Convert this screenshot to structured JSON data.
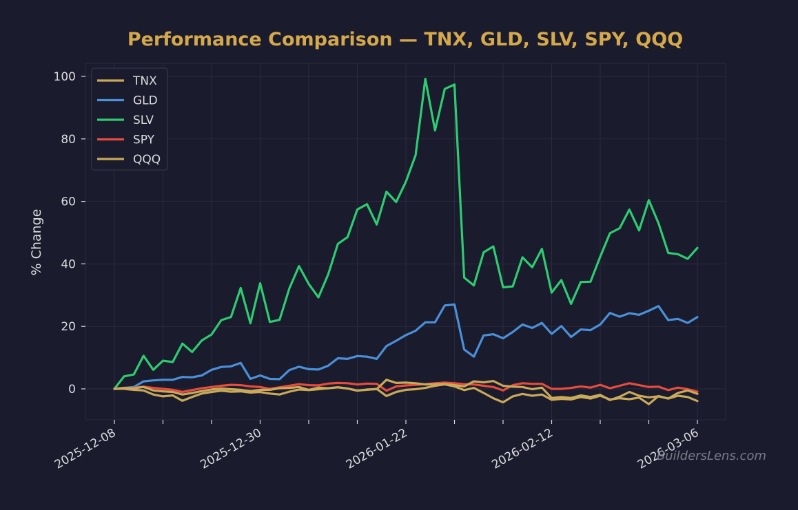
{
  "chart_data": {
    "type": "line",
    "title": "Performance Comparison — TNX, GLD, SLV, SPY, QQQ",
    "xlabel": "",
    "ylabel": "% Change",
    "ylim": [
      -10,
      105
    ],
    "yticks": [
      0,
      20,
      40,
      60,
      80,
      100
    ],
    "x_tick_labels": [
      "2025-12-08",
      "2025-12-30",
      "2026-01-22",
      "2026-02-12",
      "2026-03-06"
    ],
    "grid": true,
    "legend_position": "upper-left",
    "watermark": "BuildersLens.com",
    "x": [
      "2025-12-08",
      "2025-12-09",
      "2025-12-10",
      "2025-12-11",
      "2025-12-12",
      "2025-12-15",
      "2025-12-16",
      "2025-12-17",
      "2025-12-18",
      "2025-12-19",
      "2025-12-22",
      "2025-12-23",
      "2025-12-24",
      "2025-12-26",
      "2025-12-29",
      "2025-12-30",
      "2025-12-31",
      "2026-01-02",
      "2026-01-05",
      "2026-01-06",
      "2026-01-07",
      "2026-01-08",
      "2026-01-09",
      "2026-01-12",
      "2026-01-13",
      "2026-01-14",
      "2026-01-15",
      "2026-01-16",
      "2026-01-20",
      "2026-01-21",
      "2026-01-22",
      "2026-01-23",
      "2026-01-26",
      "2026-01-27",
      "2026-01-28",
      "2026-01-29",
      "2026-01-30",
      "2026-02-02",
      "2026-02-03",
      "2026-02-04",
      "2026-02-05",
      "2026-02-06",
      "2026-02-09",
      "2026-02-10",
      "2026-02-11",
      "2026-02-12",
      "2026-02-13",
      "2026-02-17",
      "2026-02-18",
      "2026-02-19",
      "2026-02-20",
      "2026-02-23",
      "2026-02-24",
      "2026-02-25",
      "2026-02-26",
      "2026-02-27",
      "2026-03-02",
      "2026-03-03",
      "2026-03-04",
      "2026-03-05",
      "2026-03-06"
    ],
    "series": [
      {
        "name": "TNX",
        "color": "#c9a95a",
        "values": [
          0,
          0,
          -0.3,
          -0.5,
          -1.8,
          -2.4,
          -2.1,
          -3.8,
          -2.6,
          -1.5,
          -1,
          -0.6,
          -0.9,
          -0.8,
          -1.2,
          -1,
          -1.5,
          -1.8,
          -0.9,
          -0.2,
          -0.4,
          -0.1,
          0.2,
          0.5,
          0.1,
          -0.5,
          -0.3,
          0,
          -2.3,
          -1,
          -0.3,
          -0.1,
          0.3,
          1,
          1.4,
          0.8,
          -0.4,
          0.3,
          -1.3,
          -3,
          -4.3,
          -2.4,
          -1.6,
          -2.2,
          -1.8,
          -3.5,
          -3.2,
          -3.4,
          -2.6,
          -3.1,
          -2.2,
          -3.4,
          -3,
          -3.3,
          -2.8,
          -4.9,
          -2.3,
          -3.1,
          -2.2,
          -2.6,
          -3.9
        ]
      },
      {
        "name": "GLD",
        "color": "#4a90d9",
        "values": [
          0,
          0.3,
          0.6,
          2.4,
          2.7,
          2.9,
          2.9,
          3.8,
          3.7,
          4.3,
          6.1,
          7,
          7.2,
          8.3,
          3.2,
          4.3,
          3.2,
          3.1,
          6,
          7.1,
          6.3,
          6.2,
          7.4,
          9.8,
          9.6,
          10.5,
          10.3,
          9.6,
          13.7,
          15.4,
          17.2,
          18.6,
          21.3,
          21.3,
          26.7,
          27,
          12.6,
          10.3,
          17.1,
          17.5,
          16.2,
          18.2,
          20.6,
          19.5,
          21.1,
          17.6,
          20.1,
          16.6,
          19,
          18.8,
          20.6,
          24.3,
          23.1,
          24.2,
          23.7,
          25,
          26.5,
          22,
          22.4,
          21.1,
          23
        ]
      },
      {
        "name": "SLV",
        "color": "#2ecc71",
        "values": [
          0,
          4,
          4.6,
          10.6,
          6.1,
          9,
          8.6,
          14.5,
          11.8,
          15.5,
          17.4,
          22,
          23,
          32.3,
          21,
          33.8,
          21.4,
          22.1,
          32.1,
          39.3,
          33.6,
          29.3,
          36.6,
          46.4,
          48.6,
          57.4,
          59.1,
          52.6,
          63.1,
          59.8,
          66.3,
          74.8,
          99.2,
          82.7,
          96,
          97.4,
          35.6,
          33.1,
          43.7,
          45.6,
          32.5,
          32.8,
          42.1,
          38.9,
          44.8,
          30.8,
          34.8,
          27.2,
          34.2,
          34.3,
          42.3,
          49.8,
          51.4,
          57.4,
          50.7,
          60.4,
          53,
          43.5,
          43.1,
          41.6,
          45.1
        ]
      },
      {
        "name": "SPY",
        "color": "#e74c3c",
        "values": [
          0,
          0.2,
          0.4,
          0.7,
          0.3,
          0,
          -0.3,
          -1,
          -0.4,
          0.2,
          0.6,
          1,
          1.3,
          1.2,
          0.8,
          0.6,
          0,
          0.5,
          1,
          1.5,
          1.2,
          1.1,
          1.7,
          1.9,
          1.8,
          1.4,
          1.7,
          1.6,
          -0.6,
          0.8,
          1.1,
          1.3,
          1.5,
          1.8,
          2,
          1.8,
          1.5,
          1.4,
          1,
          0.6,
          -0.5,
          1.2,
          1.8,
          1.6,
          1.6,
          0,
          0,
          0.3,
          0.8,
          0.4,
          1.3,
          0.2,
          1,
          1.8,
          1.2,
          0.6,
          0.7,
          -0.4,
          0.4,
          -0.1,
          -0.9
        ]
      },
      {
        "name": "QQQ",
        "color": "#c9a95a",
        "values": [
          0,
          0.3,
          0.2,
          0.6,
          -0.5,
          -0.8,
          -1,
          -1.8,
          -1.3,
          -0.7,
          -0.2,
          0.1,
          -0.1,
          -0.3,
          -0.7,
          -0.3,
          -0.3,
          0.2,
          0.3,
          0.6,
          -0.3,
          0.4,
          0.2,
          0.5,
          0.1,
          -0.6,
          -0.2,
          -0.1,
          2.9,
          1.9,
          2,
          1.8,
          1.4,
          1.5,
          1.6,
          1.2,
          0.8,
          2.4,
          2.1,
          2.5,
          1,
          0.7,
          0.6,
          -0.1,
          0.4,
          -2.9,
          -2.6,
          -2.9,
          -2.1,
          -2.6,
          -1.9,
          -3.6,
          -2.5,
          -1,
          -2.2,
          -2.7,
          -2.4,
          -3.1,
          -1.3,
          -0.5,
          -1.6
        ]
      }
    ]
  }
}
